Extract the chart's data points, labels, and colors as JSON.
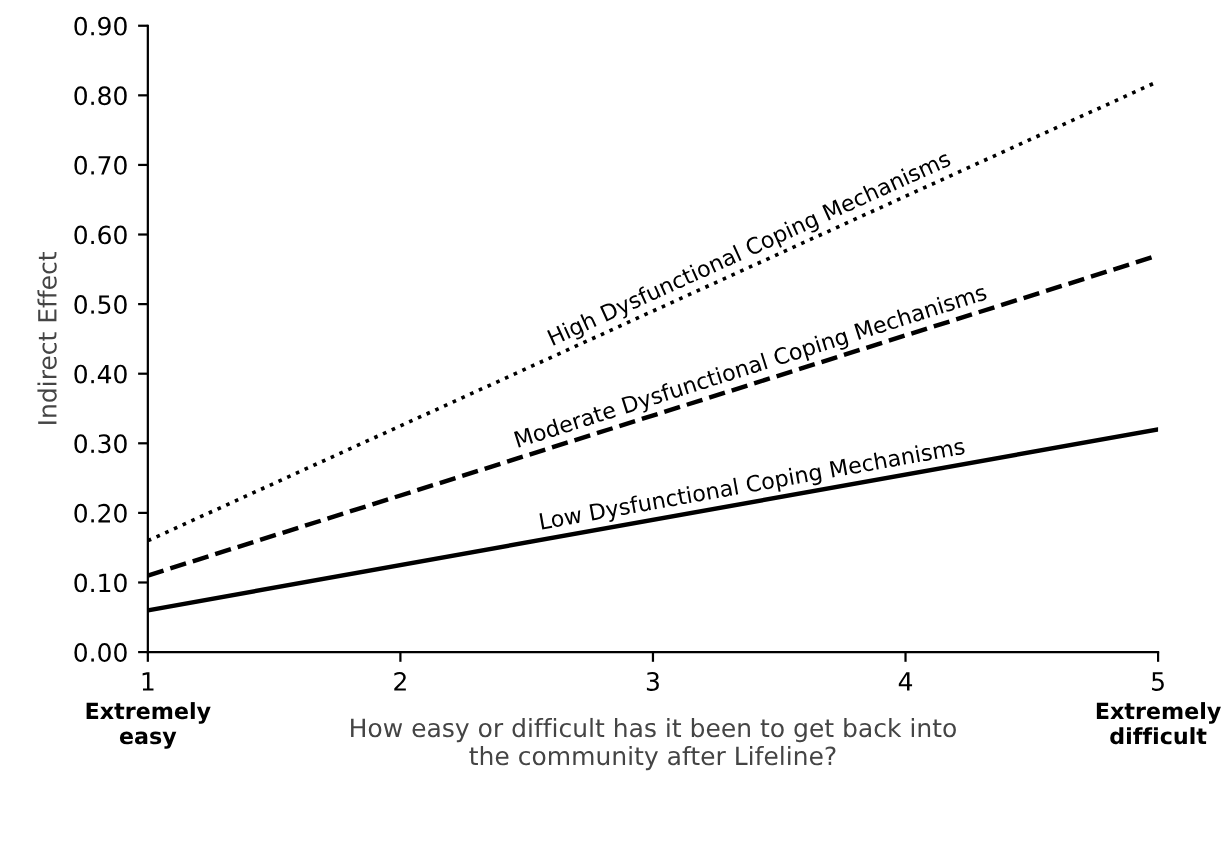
{
  "chart_data": {
    "type": "line",
    "ylabel": "Indirect Effect",
    "xlabel": "How easy or difficult has it been to get back into\nthe community after Lifeline?",
    "x": [
      1,
      5
    ],
    "series": [
      {
        "name": "High Dysfunctional Coping Mechanisms",
        "color": "#000000",
        "values": [
          0.16,
          0.82
        ],
        "line_style": "dotted"
      },
      {
        "name": "Moderate Dysfunctional Coping Mechanisms",
        "color": "#000000",
        "values": [
          0.11,
          0.57
        ],
        "line_style": "dashed"
      },
      {
        "name": "Low Dysfunctional Coping Mechanisms",
        "color": "#000000",
        "values": [
          0.06,
          0.32
        ],
        "line_style": "solid"
      }
    ],
    "xlim": [
      1,
      5
    ],
    "xticks": [
      1,
      2,
      3,
      4,
      5
    ],
    "ylim": [
      0,
      0.9
    ],
    "yticks": [
      {
        "value": 0,
        "label": "0.00"
      },
      {
        "value": 0.1,
        "label": "0.10"
      },
      {
        "value": 0.2,
        "label": "0.20"
      },
      {
        "value": 0.3,
        "label": "0.30"
      },
      {
        "value": 0.4,
        "label": "0.40"
      },
      {
        "value": 0.5,
        "label": "0.50"
      },
      {
        "value": 0.6,
        "label": "0.60"
      },
      {
        "value": 0.7,
        "label": "0.70"
      },
      {
        "value": 0.8,
        "label": "0.80"
      },
      {
        "value": 0.9,
        "label": "0.90"
      }
    ],
    "annotations": [
      "Extremely\neasy",
      "Extremely\ndifficult"
    ],
    "grid": false,
    "legend": false,
    "marker": "none"
  }
}
